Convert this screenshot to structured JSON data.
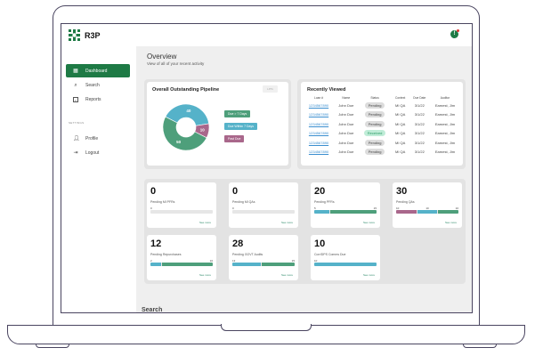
{
  "brand": {
    "name": "R3P",
    "accent": "#1e7a45"
  },
  "sidebar": {
    "main_menu_label": "MAIN MENU",
    "settings_label": "SETTINGS",
    "items": [
      {
        "label": "Dashboard",
        "icon": "dashboard-icon",
        "active": true
      },
      {
        "label": "Search",
        "icon": "search-icon"
      },
      {
        "label": "Reports",
        "icon": "reports-icon"
      }
    ],
    "settings_items": [
      {
        "label": "Profile",
        "icon": "user-icon"
      },
      {
        "label": "Logout",
        "icon": "logout-icon"
      }
    ]
  },
  "header": {
    "notification_icon": "alert-icon"
  },
  "overview": {
    "title": "Overview",
    "subtitle": "View of all of your recent activity"
  },
  "pipeline": {
    "title": "Overall Outstanding Pipeline",
    "filter_label": "LPTs",
    "chart_data": {
      "type": "pie",
      "values": [
        40,
        10,
        50
      ],
      "labels": [
        "Due Within 7 Days",
        "Past Due",
        "Due > 7 Days"
      ],
      "colors": [
        "#55b2c9",
        "#a9678b",
        "#4e9f7b"
      ]
    },
    "legend": [
      {
        "label": "Due > 7 Days",
        "color": "#4e9f7b"
      },
      {
        "label": "Due Within 7 Days",
        "color": "#55b2c9"
      },
      {
        "label": "Past Due",
        "color": "#a9678b"
      }
    ]
  },
  "recent": {
    "title": "Recently Viewed",
    "columns": [
      "Loan #",
      "Name",
      "Status",
      "Context",
      "Due Date",
      "Auditor"
    ],
    "rows": [
      {
        "loan": "1234567890",
        "name": "John Doe",
        "status": "Pending",
        "context": "MI QA",
        "due": "3/1/22",
        "auditor": "Earnest, Jim"
      },
      {
        "loan": "1234567890",
        "name": "John Doe",
        "status": "Pending",
        "context": "MI QA",
        "due": "3/1/22",
        "auditor": "Earnest, Jim"
      },
      {
        "loan": "1234567890",
        "name": "John Doe",
        "status": "Pending",
        "context": "MI QA",
        "due": "3/1/22",
        "auditor": "Earnest, Jim"
      },
      {
        "loan": "1234567890",
        "name": "John Doe",
        "status": "Received",
        "context": "MI QA",
        "due": "3/1/22",
        "auditor": "Earnest, Jim"
      },
      {
        "loan": "1234567890",
        "name": "John Doe",
        "status": "Pending",
        "context": "MI QA",
        "due": "3/1/22",
        "auditor": "Earnest, Jim"
      },
      {
        "loan": "1234567890",
        "name": "John Doe",
        "status": "Pending",
        "context": "MI QA",
        "due": "3/1/22",
        "auditor": "Earnest, Jim"
      }
    ]
  },
  "stats": [
    {
      "value": "0",
      "label": "Pending MI PFRs",
      "segments": [
        {
          "v": 0,
          "label": "0",
          "color": "#e6e6e6"
        }
      ],
      "more": "See more"
    },
    {
      "value": "0",
      "label": "Pending MI QAs",
      "segments": [
        {
          "v": 0,
          "label": "0",
          "color": "#e6e6e6"
        }
      ],
      "more": "See more"
    },
    {
      "value": "20",
      "label": "Pending PFRs",
      "segments": [
        {
          "v": 5,
          "label": "5",
          "color": "#55b2c9"
        },
        {
          "v": 15,
          "label": "15",
          "color": "#4e9f7b"
        }
      ],
      "more": "See more"
    },
    {
      "value": "30",
      "label": "Pending QAs",
      "segments": [
        {
          "v": 10,
          "label": "10",
          "color": "#a9678b"
        },
        {
          "v": 10,
          "label": "10",
          "color": "#55b2c9"
        },
        {
          "v": 10,
          "label": "10",
          "color": "#4e9f7b"
        }
      ],
      "more": "See more"
    },
    {
      "value": "12",
      "label": "Pending Repurchases",
      "segments": [
        {
          "v": 2,
          "label": "2",
          "color": "#55b2c9"
        },
        {
          "v": 10,
          "label": "10",
          "color": "#4e9f7b"
        }
      ],
      "more": "See more"
    },
    {
      "value": "28",
      "label": "Pending GOVT Audits",
      "segments": [
        {
          "v": 13,
          "label": "13",
          "color": "#55b2c9"
        },
        {
          "v": 15,
          "label": "15",
          "color": "#4e9f7b"
        }
      ],
      "more": "See more"
    },
    {
      "value": "10",
      "label": "Corr/DPS Comms Due",
      "segments": [
        {
          "v": 10,
          "label": "10",
          "color": "#55b2c9"
        }
      ],
      "more": "See more"
    }
  ],
  "search_section": {
    "title": "Search"
  }
}
